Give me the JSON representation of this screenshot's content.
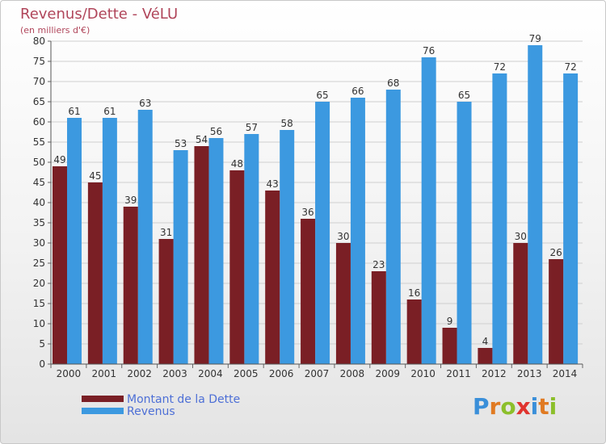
{
  "header": {
    "title": "Revenus/Dette - VéLU",
    "subtitle": "(en milliers d'€)"
  },
  "legend": {
    "debt_label": "Montant de la Dette",
    "revenue_label": "Revenus"
  },
  "logo": {
    "text": "Proxiti",
    "letters": [
      "P",
      "r",
      "o",
      "x",
      "i",
      "t",
      "i"
    ],
    "colors": [
      "#3a8fd9",
      "#e07a22",
      "#8cbf2b",
      "#e0342f",
      "#3a8fd9",
      "#e07a22",
      "#8cbf2b"
    ]
  },
  "colors": {
    "debt": "#7a1f25",
    "revenue": "#3c99e0",
    "title": "#b0455a",
    "legend_text": "#4d6fd6"
  },
  "chart_data": {
    "type": "bar",
    "title": "Revenus/Dette - VéLU",
    "subtitle": "(en milliers d'€)",
    "categories": [
      "2000",
      "2001",
      "2002",
      "2003",
      "2004",
      "2005",
      "2006",
      "2007",
      "2008",
      "2009",
      "2010",
      "2011",
      "2012",
      "2013",
      "2014"
    ],
    "series": [
      {
        "name": "Montant de la Dette",
        "values": [
          49,
          45,
          39,
          31,
          54,
          48,
          43,
          36,
          30,
          23,
          16,
          9,
          4,
          30,
          26
        ]
      },
      {
        "name": "Revenus",
        "values": [
          61,
          61,
          63,
          53,
          56,
          57,
          58,
          65,
          66,
          68,
          76,
          65,
          72,
          79,
          72
        ]
      }
    ],
    "ylim": [
      0,
      80
    ],
    "yticks": [
      0,
      5,
      10,
      15,
      20,
      25,
      30,
      35,
      40,
      45,
      50,
      55,
      60,
      65,
      70,
      75,
      80
    ],
    "grid": true,
    "legend_position": "bottom-left"
  }
}
